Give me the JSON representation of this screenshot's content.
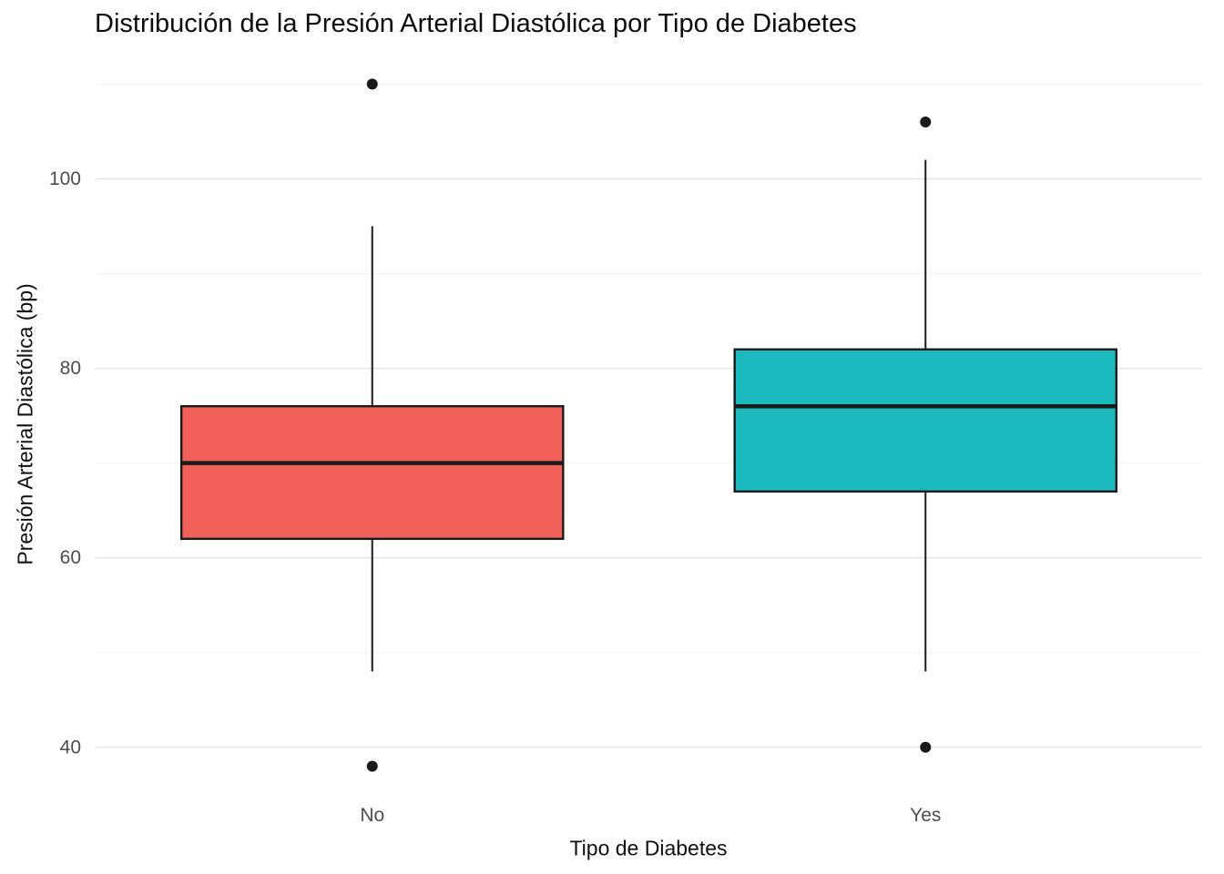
{
  "chart": {
    "title": "Distribución de la Presión Arterial Diastólica por Tipo de Diabetes",
    "xlabel": "Tipo de Diabetes",
    "ylabel": "Presión Arterial Diastólica (bp)"
  },
  "chart_data": {
    "type": "box",
    "title": "Distribución de la Presión Arterial Diastólica por Tipo de Diabetes",
    "xlabel": "Tipo de Diabetes",
    "ylabel": "Presión Arterial Diastólica (bp)",
    "categories": [
      "No",
      "Yes"
    ],
    "series": [
      {
        "name": "No",
        "fill": "#F2605A",
        "whisker_low": 48,
        "q1": 62,
        "median": 70,
        "q3": 76,
        "whisker_high": 95,
        "outliers": [
          110,
          38
        ]
      },
      {
        "name": "Yes",
        "fill": "#1CB9BE",
        "whisker_low": 48,
        "q1": 67,
        "median": 76,
        "q3": 82,
        "whisker_high": 102,
        "outliers": [
          106,
          40
        ]
      }
    ],
    "ylim": [
      34.5,
      113.5
    ],
    "yticks": [
      40,
      60,
      80,
      100
    ],
    "yticks_minor": [
      50,
      70,
      90,
      110
    ],
    "grid": "horizontal-only",
    "legend": "none",
    "colors": {
      "box_stroke": "#1A1A1A",
      "outlier": "#1A1A1A",
      "grid_major": "#E4E4E4",
      "grid_minor": "#F3F3F3",
      "tick_label": "#4D4D4D",
      "text": "#111111",
      "background": "#FFFFFF"
    }
  }
}
